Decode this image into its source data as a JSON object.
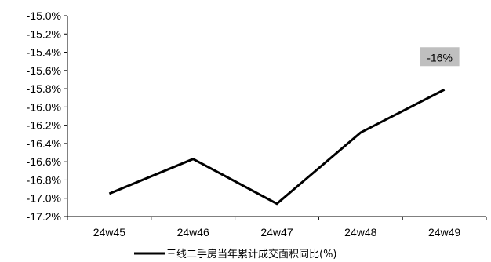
{
  "chart_data": {
    "type": "line",
    "categories": [
      "24w45",
      "24w46",
      "24w47",
      "24w48",
      "24w49"
    ],
    "series": [
      {
        "name": "三线二手房当年累计成交面积同比(%)",
        "values": [
          -16.95,
          -16.57,
          -17.06,
          -16.28,
          -15.81
        ],
        "color": "#000000"
      }
    ],
    "y_ticks": [
      "-15.0%",
      "-15.2%",
      "-15.4%",
      "-15.6%",
      "-15.8%",
      "-16.0%",
      "-16.2%",
      "-16.4%",
      "-16.6%",
      "-16.8%",
      "-17.0%",
      "-17.2%"
    ],
    "ylim": [
      -17.2,
      -15.0
    ],
    "data_label": {
      "text": "-16%",
      "category": "24w49",
      "background": "#bfbfbf"
    },
    "legend_position": "bottom",
    "grid": false
  }
}
